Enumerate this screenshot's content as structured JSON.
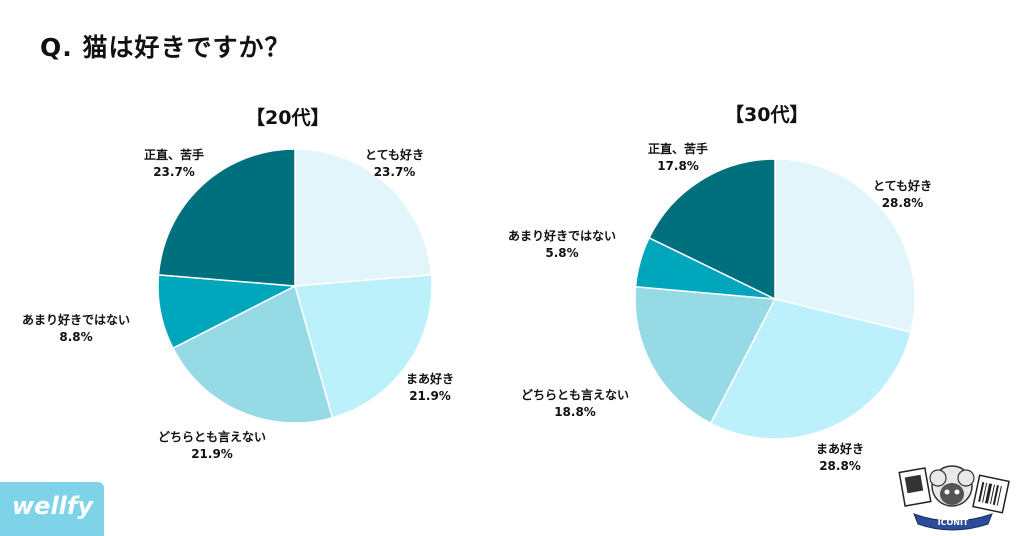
{
  "title": "Q. 猫は好きですか？",
  "logo_text": "wellfy",
  "badge_text": "ICONIT",
  "chart_data": [
    {
      "type": "pie",
      "title": "【20代】",
      "slices": [
        {
          "label": "とても好き",
          "value": 23.7,
          "value_label": "23.7%",
          "color": "#e2f5fa"
        },
        {
          "label": "まあ好き",
          "value": 21.9,
          "value_label": "21.9%",
          "color": "#bcf0fa"
        },
        {
          "label": "どちらとも言えない",
          "value": 21.9,
          "value_label": "21.9%",
          "color": "#96dae6"
        },
        {
          "label": "あまり好きではない",
          "value": 8.8,
          "value_label": "8.8%",
          "color": "#00a6bc"
        },
        {
          "label": "正直、苦手",
          "value": 23.7,
          "value_label": "23.7%",
          "color": "#00707e"
        }
      ]
    },
    {
      "type": "pie",
      "title": "【30代】",
      "slices": [
        {
          "label": "とても好き",
          "value": 28.8,
          "value_label": "28.8%",
          "color": "#e2f5fa"
        },
        {
          "label": "まあ好き",
          "value": 28.8,
          "value_label": "28.8%",
          "color": "#bcf0fa"
        },
        {
          "label": "どちらとも言えない",
          "value": 18.8,
          "value_label": "18.8%",
          "color": "#96dae6"
        },
        {
          "label": "あまり好きではない",
          "value": 5.8,
          "value_label": "5.8%",
          "color": "#00a6bc"
        },
        {
          "label": "正直、苦手",
          "value": 17.8,
          "value_label": "17.8%",
          "color": "#00707e"
        }
      ]
    }
  ]
}
